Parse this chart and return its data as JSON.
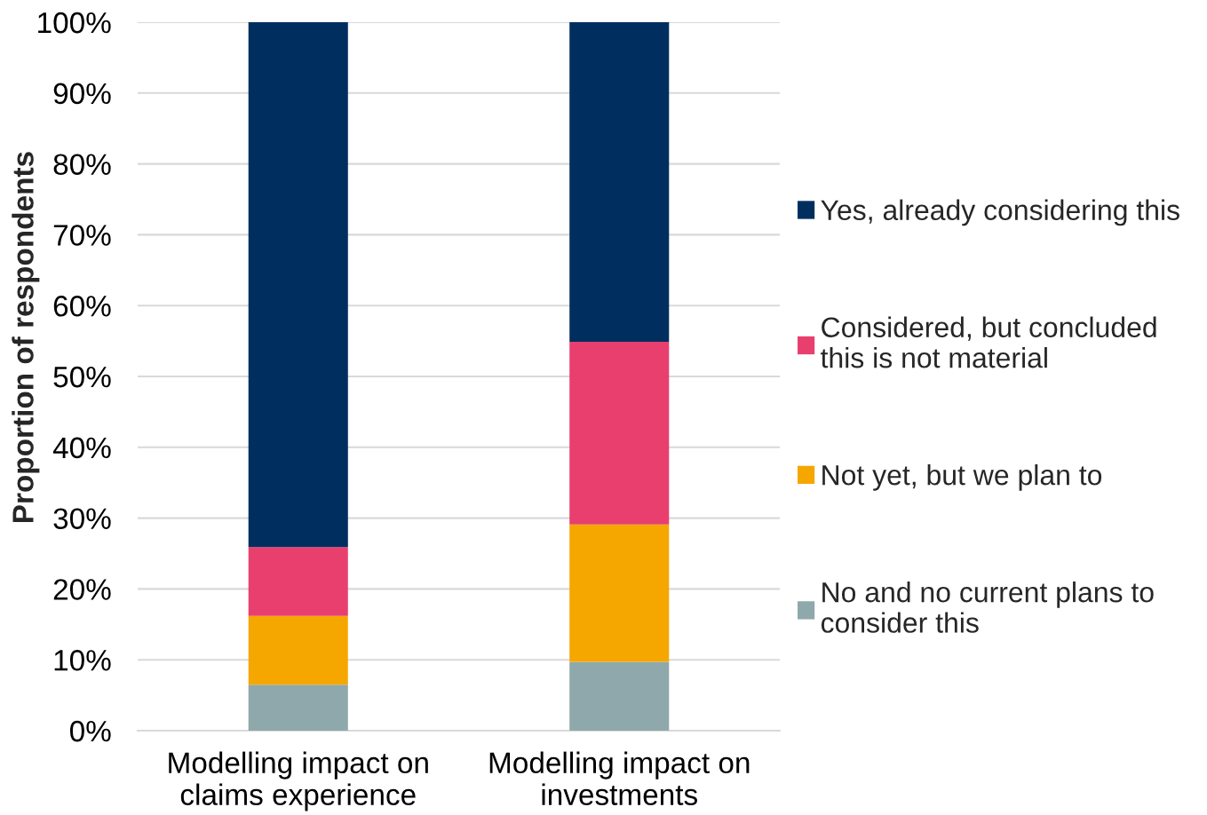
{
  "chart_data": {
    "type": "bar",
    "stacked": true,
    "ylabel": "Proportion of respondents",
    "categories": [
      "Modelling impact on\nclaims experience",
      "Modelling impact on\ninvestments"
    ],
    "series": [
      {
        "name": "No and no current plans to\nconsider this",
        "color": "#8fa8ab",
        "values": [
          6.5,
          9.7
        ]
      },
      {
        "name": "Not yet, but we plan to",
        "color": "#f5a700",
        "values": [
          9.7,
          19.4
        ]
      },
      {
        "name": "Considered, but concluded\nthis is not material",
        "color": "#e83f6f",
        "values": [
          9.7,
          25.8
        ]
      },
      {
        "name": "Yes, already considering this",
        "color": "#002f5f",
        "values": [
          74.1,
          45.1
        ]
      }
    ],
    "ylim": [
      0,
      100
    ],
    "yticks": [
      {
        "value": 0,
        "label": "0%"
      },
      {
        "value": 10,
        "label": "10%"
      },
      {
        "value": 20,
        "label": "20%"
      },
      {
        "value": 30,
        "label": "30%"
      },
      {
        "value": 40,
        "label": "40%"
      },
      {
        "value": 50,
        "label": "50%"
      },
      {
        "value": 60,
        "label": "60%"
      },
      {
        "value": 70,
        "label": "70%"
      },
      {
        "value": 80,
        "label": "80%"
      },
      {
        "value": 90,
        "label": "90%"
      },
      {
        "value": 100,
        "label": "100%"
      }
    ],
    "grid": "y",
    "legend": "right"
  }
}
